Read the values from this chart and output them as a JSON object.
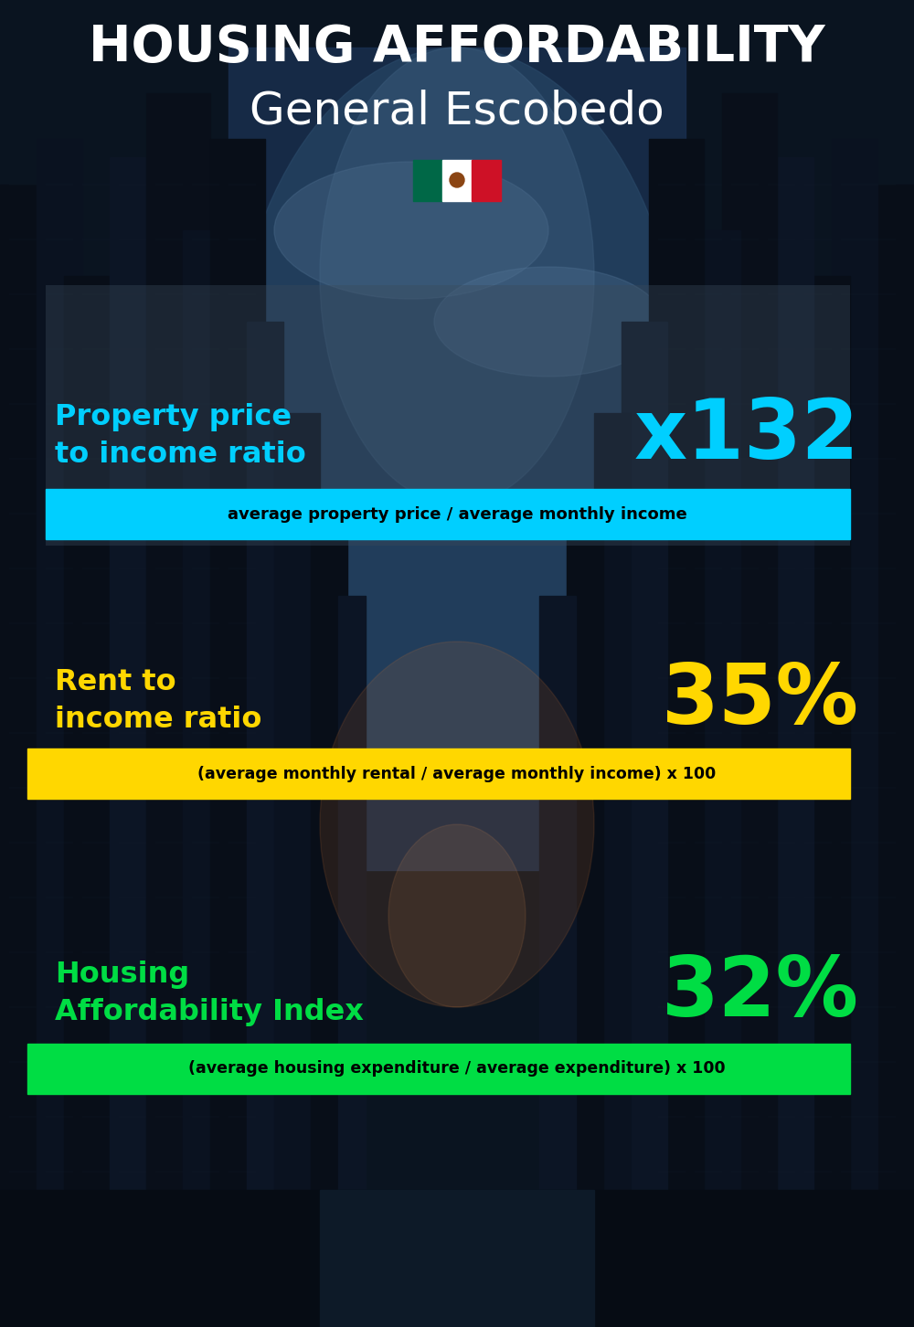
{
  "title_line1": "HOUSING AFFORDABILITY",
  "title_line2": "General Escobedo",
  "bg_color": "#0a1520",
  "section1_label": "Property price\nto income ratio",
  "section1_value": "x132",
  "section1_label_color": "#00cfff",
  "section1_value_color": "#00cfff",
  "section1_banner": "average property price / average monthly income",
  "section1_banner_bg": "#00cfff",
  "section1_banner_color": "#000000",
  "section2_label": "Rent to\nincome ratio",
  "section2_value": "35%",
  "section2_label_color": "#ffd700",
  "section2_value_color": "#ffd700",
  "section2_banner": "(average monthly rental / average monthly income) x 100",
  "section2_banner_bg": "#ffd700",
  "section2_banner_color": "#000000",
  "section3_label": "Housing\nAffordability Index",
  "section3_value": "32%",
  "section3_label_color": "#00dd44",
  "section3_value_color": "#00dd44",
  "section3_banner": "(average housing expenditure / average expenditure) x 100",
  "section3_banner_bg": "#00dd44",
  "section3_banner_color": "#000000"
}
